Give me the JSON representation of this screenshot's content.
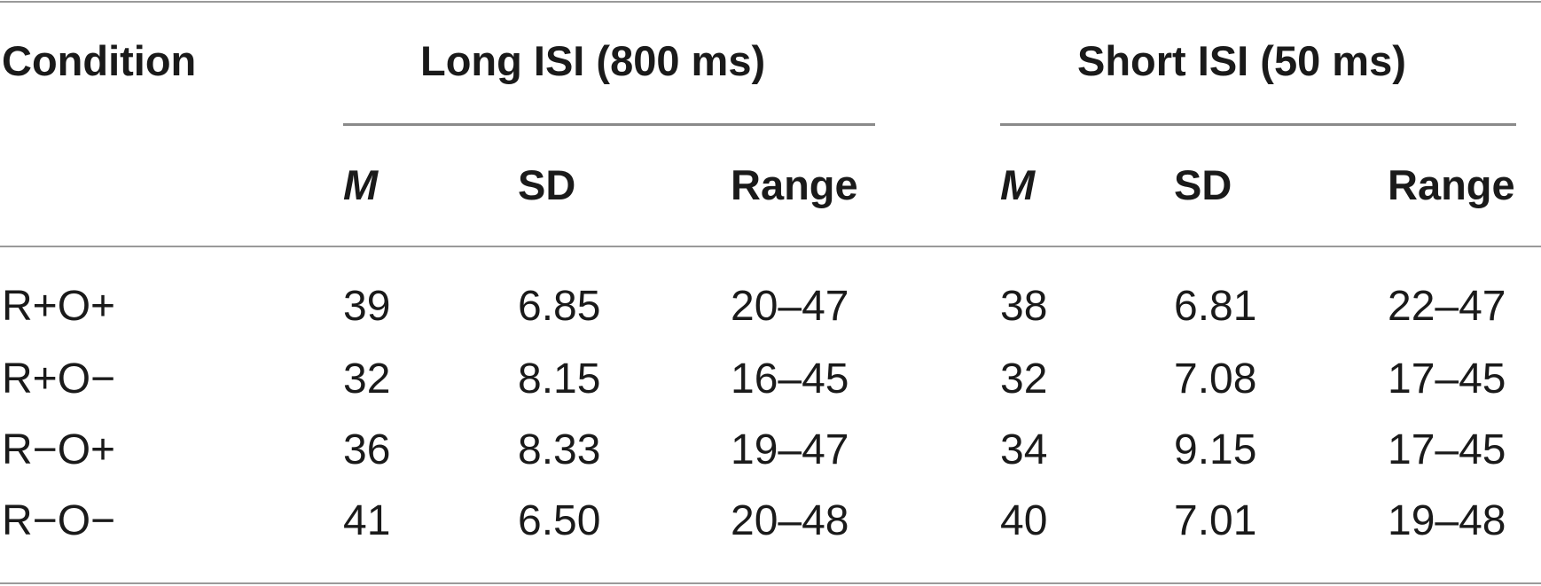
{
  "table": {
    "header": {
      "condition": "Condition",
      "long_isi": "Long ISI (800 ms)",
      "short_isi": "Short ISI (50 ms)",
      "subheaders": {
        "m": "M",
        "sd": "SD",
        "range": "Range"
      }
    },
    "rows": [
      {
        "condition": "R+O+",
        "long_m": "39",
        "long_sd": "6.85",
        "long_range": "20–47",
        "short_m": "38",
        "short_sd": "6.81",
        "short_range": "22–47"
      },
      {
        "condition": "R+O−",
        "long_m": "32",
        "long_sd": "8.15",
        "long_range": "16–45",
        "short_m": "32",
        "short_sd": "7.08",
        "short_range": "17–45"
      },
      {
        "condition": "R−O+",
        "long_m": "36",
        "long_sd": "8.33",
        "long_range": "19–47",
        "short_m": "34",
        "short_sd": "9.15",
        "short_range": "17–45"
      },
      {
        "condition": "R−O−",
        "long_m": "41",
        "long_sd": "6.50",
        "long_range": "20–48",
        "short_m": "40",
        "short_sd": "7.01",
        "short_range": "19–48"
      }
    ]
  }
}
